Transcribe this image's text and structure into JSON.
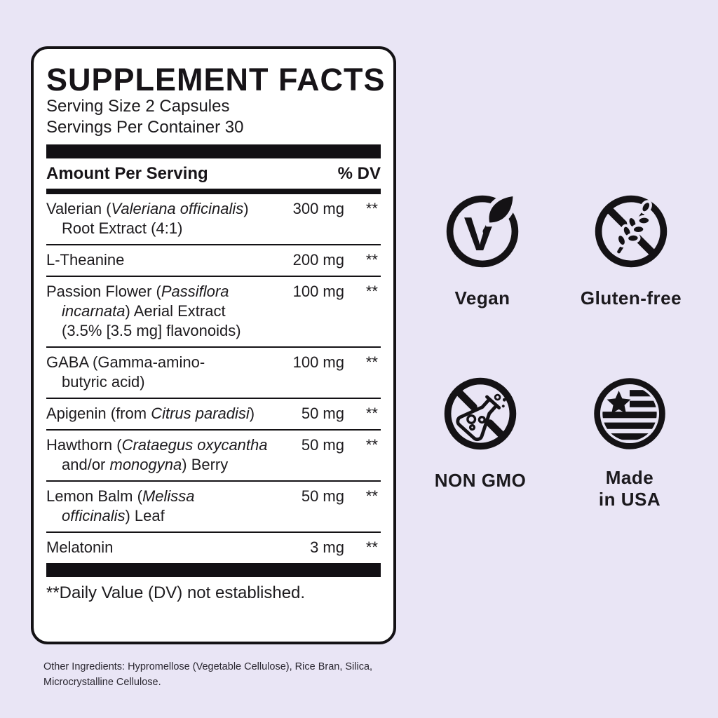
{
  "colors": {
    "background": "#e9e5f5",
    "panel_background": "#ffffff",
    "ink": "#141215"
  },
  "label": {
    "title": "SUPPLEMENT FACTS",
    "serving_size": "Serving Size 2 Capsules",
    "servings_per_container": "Servings Per Container 30",
    "columns": {
      "amount": "Amount Per Serving",
      "dv": "% DV"
    },
    "rows": [
      {
        "amount": "300 mg",
        "dv": "**",
        "lines": [
          [
            {
              "t": "Valerian ("
            },
            {
              "t": "Valeriana officinalis",
              "i": true
            },
            {
              "t": ")"
            }
          ],
          [
            {
              "t": "Root Extract (4:1)"
            }
          ]
        ]
      },
      {
        "amount": "200 mg",
        "dv": "**",
        "lines": [
          [
            {
              "t": "L-Theanine"
            }
          ]
        ]
      },
      {
        "amount": "100 mg",
        "dv": "**",
        "lines": [
          [
            {
              "t": "Passion Flower ("
            },
            {
              "t": "Passiflora",
              "i": true
            }
          ],
          [
            {
              "t": "incarnata",
              "i": true
            },
            {
              "t": ") Aerial Extract"
            }
          ],
          [
            {
              "t": "(3.5% [3.5 mg] flavonoids)"
            }
          ]
        ]
      },
      {
        "amount": "100 mg",
        "dv": "**",
        "lines": [
          [
            {
              "t": "GABA (Gamma-amino-"
            }
          ],
          [
            {
              "t": "butyric acid)"
            }
          ]
        ]
      },
      {
        "amount": "50 mg",
        "dv": "**",
        "lines": [
          [
            {
              "t": "Apigenin (from "
            },
            {
              "t": "Citrus paradisi",
              "i": true
            },
            {
              "t": ")"
            }
          ]
        ]
      },
      {
        "amount": "50 mg",
        "dv": "**",
        "lines": [
          [
            {
              "t": "Hawthorn ("
            },
            {
              "t": "Crataegus oxycantha",
              "i": true
            }
          ],
          [
            {
              "t": "and/or "
            },
            {
              "t": "monogyna",
              "i": true
            },
            {
              "t": ") Berry"
            }
          ]
        ]
      },
      {
        "amount": "50 mg",
        "dv": "**",
        "lines": [
          [
            {
              "t": "Lemon Balm ("
            },
            {
              "t": "Melissa",
              "i": true
            }
          ],
          [
            {
              "t": "officinalis",
              "i": true
            },
            {
              "t": ") Leaf"
            }
          ]
        ]
      },
      {
        "amount": "3 mg",
        "dv": "**",
        "lines": [
          [
            {
              "t": "Melatonin"
            }
          ]
        ]
      }
    ],
    "footnote": "**Daily Value (DV) not established."
  },
  "other_ingredients": "Other Ingredients: Hypromellose (Vegetable Cellulose),  Rice Bran, Silica,\nMicrocrystalline Cellulose.",
  "badges": [
    {
      "id": "vegan",
      "icon": "vegan-icon",
      "label": "Vegan"
    },
    {
      "id": "gluten-free",
      "icon": "gluten-free-icon",
      "label": "Gluten-free"
    },
    {
      "id": "non-gmo",
      "icon": "non-gmo-icon",
      "label": "NON GMO"
    },
    {
      "id": "made-in-usa",
      "icon": "made-in-usa-icon",
      "label": "Made\nin USA"
    }
  ]
}
